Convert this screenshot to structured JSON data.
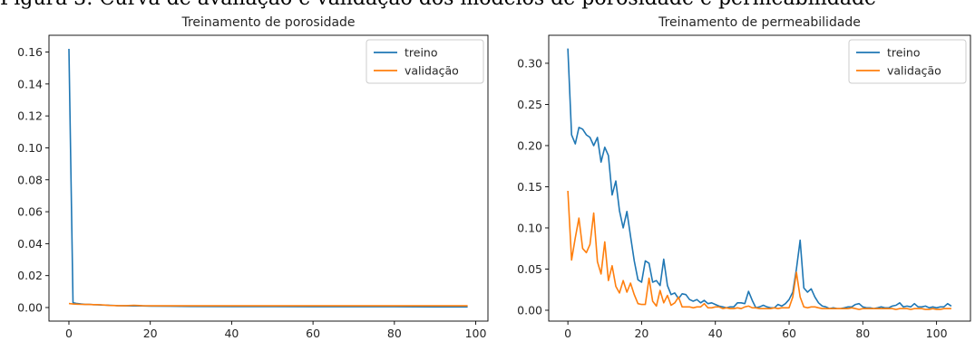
{
  "caption_cut": "Figura 3: Curva de avaliação e validação dos modelos de porosidade e permeabilidade",
  "chart_data": [
    {
      "type": "line",
      "title": "Treinamento de porosidade",
      "xlabel": "",
      "ylabel": "",
      "xlim": [
        -4.9,
        103
      ],
      "ylim": [
        -0.0085,
        0.1705
      ],
      "xticks": [
        0,
        20,
        40,
        60,
        80,
        100
      ],
      "yticks": [
        0.0,
        0.02,
        0.04,
        0.06,
        0.08,
        0.1,
        0.12,
        0.14,
        0.16
      ],
      "ytick_decimals": 2,
      "grid": false,
      "legend": "top-right",
      "series": [
        {
          "name": "treino",
          "color": "#1f77b4",
          "x": [
            0,
            1,
            2,
            3,
            4,
            5,
            6,
            7,
            8,
            9,
            10,
            12,
            14,
            16,
            18,
            20,
            25,
            30,
            40,
            50,
            60,
            70,
            80,
            90,
            98
          ],
          "y": [
            0.162,
            0.003,
            0.0025,
            0.0022,
            0.002,
            0.002,
            0.0018,
            0.0017,
            0.0016,
            0.0015,
            0.0014,
            0.0012,
            0.0011,
            0.001,
            0.001,
            0.0009,
            0.0008,
            0.0007,
            0.0006,
            0.0006,
            0.0005,
            0.0005,
            0.0005,
            0.0004,
            0.0004
          ]
        },
        {
          "name": "validação",
          "color": "#ff7f0e",
          "x": [
            0,
            1,
            2,
            3,
            4,
            5,
            6,
            7,
            8,
            9,
            10,
            12,
            14,
            16,
            18,
            20,
            25,
            30,
            40,
            50,
            60,
            70,
            80,
            90,
            98
          ],
          "y": [
            0.0025,
            0.0022,
            0.0021,
            0.002,
            0.0019,
            0.0019,
            0.0018,
            0.0018,
            0.0017,
            0.0015,
            0.0013,
            0.0012,
            0.0012,
            0.0014,
            0.0012,
            0.0011,
            0.0011,
            0.0011,
            0.0011,
            0.0011,
            0.0011,
            0.0011,
            0.0011,
            0.0011,
            0.0011
          ]
        }
      ]
    },
    {
      "type": "line",
      "title": "Treinamento de permeabilidade",
      "xlabel": "",
      "ylabel": "",
      "xlim": [
        -5.2,
        109.2
      ],
      "ylim": [
        -0.0132,
        0.334
      ],
      "xticks": [
        0,
        20,
        40,
        60,
        80,
        100
      ],
      "yticks": [
        0.0,
        0.05,
        0.1,
        0.15,
        0.2,
        0.25,
        0.3
      ],
      "ytick_decimals": 2,
      "grid": false,
      "legend": "top-right",
      "series": [
        {
          "name": "treino",
          "color": "#1f77b4",
          "y": [
            0.318,
            0.213,
            0.202,
            0.222,
            0.22,
            0.213,
            0.21,
            0.2,
            0.21,
            0.18,
            0.198,
            0.188,
            0.14,
            0.157,
            0.121,
            0.1,
            0.12,
            0.09,
            0.06,
            0.037,
            0.034,
            0.06,
            0.057,
            0.034,
            0.036,
            0.03,
            0.062,
            0.03,
            0.019,
            0.021,
            0.014,
            0.02,
            0.019,
            0.013,
            0.011,
            0.013,
            0.009,
            0.012,
            0.008,
            0.009,
            0.007,
            0.005,
            0.004,
            0.003,
            0.004,
            0.004,
            0.009,
            0.009,
            0.008,
            0.023,
            0.012,
            0.003,
            0.004,
            0.006,
            0.004,
            0.003,
            0.003,
            0.007,
            0.005,
            0.008,
            0.013,
            0.022,
            0.05,
            0.085,
            0.027,
            0.022,
            0.026,
            0.016,
            0.009,
            0.005,
            0.004,
            0.002,
            0.003,
            0.002,
            0.002,
            0.003,
            0.004,
            0.004,
            0.007,
            0.008,
            0.004,
            0.003,
            0.003,
            0.002,
            0.003,
            0.004,
            0.003,
            0.003,
            0.005,
            0.006,
            0.009,
            0.004,
            0.005,
            0.004,
            0.008,
            0.004,
            0.004,
            0.005,
            0.003,
            0.004,
            0.003,
            0.004,
            0.004,
            0.008,
            0.005
          ]
        },
        {
          "name": "validação",
          "color": "#ff7f0e",
          "y": [
            0.145,
            0.061,
            0.088,
            0.112,
            0.075,
            0.07,
            0.08,
            0.118,
            0.059,
            0.044,
            0.083,
            0.036,
            0.054,
            0.029,
            0.021,
            0.036,
            0.022,
            0.033,
            0.019,
            0.008,
            0.007,
            0.007,
            0.039,
            0.011,
            0.005,
            0.024,
            0.009,
            0.018,
            0.006,
            0.009,
            0.016,
            0.004,
            0.004,
            0.004,
            0.003,
            0.004,
            0.004,
            0.008,
            0.003,
            0.003,
            0.004,
            0.004,
            0.002,
            0.003,
            0.002,
            0.002,
            0.003,
            0.002,
            0.004,
            0.005,
            0.003,
            0.003,
            0.002,
            0.002,
            0.002,
            0.002,
            0.003,
            0.002,
            0.003,
            0.003,
            0.003,
            0.016,
            0.046,
            0.016,
            0.004,
            0.003,
            0.004,
            0.004,
            0.003,
            0.002,
            0.002,
            0.002,
            0.002,
            0.002,
            0.002,
            0.002,
            0.002,
            0.003,
            0.002,
            0.001,
            0.002,
            0.002,
            0.002,
            0.002,
            0.002,
            0.002,
            0.002,
            0.002,
            0.002,
            0.001,
            0.002,
            0.002,
            0.002,
            0.001,
            0.002,
            0.002,
            0.002,
            0.001,
            0.001,
            0.002,
            0.001,
            0.001,
            0.002,
            0.002,
            0.002
          ]
        }
      ]
    }
  ]
}
